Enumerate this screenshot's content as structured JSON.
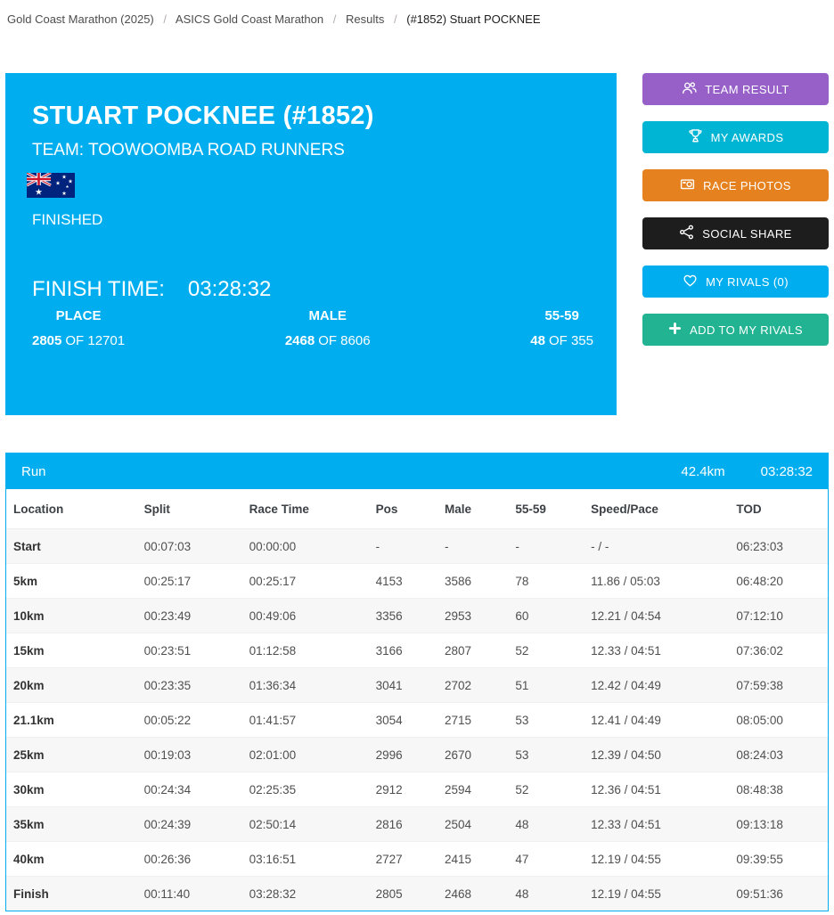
{
  "colors": {
    "accent_cyan": "#00aeef",
    "stripe": "#f7f7f7"
  },
  "breadcrumb": {
    "separator": "/",
    "items": [
      {
        "label": "Gold Coast Marathon (2025)"
      },
      {
        "label": "ASICS Gold Coast Marathon"
      },
      {
        "label": "Results"
      },
      {
        "label": "(#1852) Stuart POCKNEE"
      }
    ]
  },
  "hero": {
    "bg": "#00aeef",
    "name": "STUART POCKNEE (#1852)",
    "team": "TEAM: TOOWOOMBA ROAD RUNNERS",
    "flag": "australia",
    "status": "FINISHED",
    "finish_time_label": "FINISH TIME:",
    "finish_time": "03:28:32",
    "stats": [
      {
        "label": "PLACE",
        "value": "2805",
        "of": "OF 12701"
      },
      {
        "label": "MALE",
        "value": "2468",
        "of": "OF 8606"
      },
      {
        "label": "55-59",
        "value": "48",
        "of": "OF 355"
      }
    ]
  },
  "actions": {
    "buttons": [
      {
        "label": "TEAM RESULT",
        "icon": "team-icon",
        "color": "#9760c8"
      },
      {
        "label": "MY AWARDS",
        "icon": "trophy-icon",
        "color": "#00b4d4"
      },
      {
        "label": "RACE PHOTOS",
        "icon": "camera-icon",
        "color": "#e5811e"
      },
      {
        "label": "SOCIAL SHARE",
        "icon": "share-icon",
        "color": "#1d1d1d"
      },
      {
        "label": "MY RIVALS (0)",
        "icon": "heart-icon",
        "color": "#00aeef"
      },
      {
        "label": "ADD TO MY RIVALS",
        "icon": "plus-icon",
        "color": "#22b492"
      }
    ]
  },
  "splits": {
    "title": "Run",
    "distance": "42.4km",
    "total_time": "03:28:32",
    "header_bg": "#00aeef",
    "columns": [
      "Location",
      "Split",
      "Race Time",
      "Pos",
      "Male",
      "55-59",
      "Speed/Pace",
      "TOD"
    ],
    "rows": [
      [
        "Start",
        "00:07:03",
        "00:00:00",
        "-",
        "-",
        "-",
        "- / -",
        "06:23:03"
      ],
      [
        "5km",
        "00:25:17",
        "00:25:17",
        "4153",
        "3586",
        "78",
        "11.86 / 05:03",
        "06:48:20"
      ],
      [
        "10km",
        "00:23:49",
        "00:49:06",
        "3356",
        "2953",
        "60",
        "12.21 / 04:54",
        "07:12:10"
      ],
      [
        "15km",
        "00:23:51",
        "01:12:58",
        "3166",
        "2807",
        "52",
        "12.33 / 04:51",
        "07:36:02"
      ],
      [
        "20km",
        "00:23:35",
        "01:36:34",
        "3041",
        "2702",
        "51",
        "12.42 / 04:49",
        "07:59:38"
      ],
      [
        "21.1km",
        "00:05:22",
        "01:41:57",
        "3054",
        "2715",
        "53",
        "12.41 / 04:49",
        "08:05:00"
      ],
      [
        "25km",
        "00:19:03",
        "02:01:00",
        "2996",
        "2670",
        "53",
        "12.39 / 04:50",
        "08:24:03"
      ],
      [
        "30km",
        "00:24:34",
        "02:25:35",
        "2912",
        "2594",
        "52",
        "12.36 / 04:51",
        "08:48:38"
      ],
      [
        "35km",
        "00:24:39",
        "02:50:14",
        "2816",
        "2504",
        "48",
        "12.33 / 04:51",
        "09:13:18"
      ],
      [
        "40km",
        "00:26:36",
        "03:16:51",
        "2727",
        "2415",
        "47",
        "12.19 / 04:55",
        "09:39:55"
      ],
      [
        "Finish",
        "00:11:40",
        "03:28:32",
        "2805",
        "2468",
        "48",
        "12.19 / 04:55",
        "09:51:36"
      ]
    ]
  }
}
